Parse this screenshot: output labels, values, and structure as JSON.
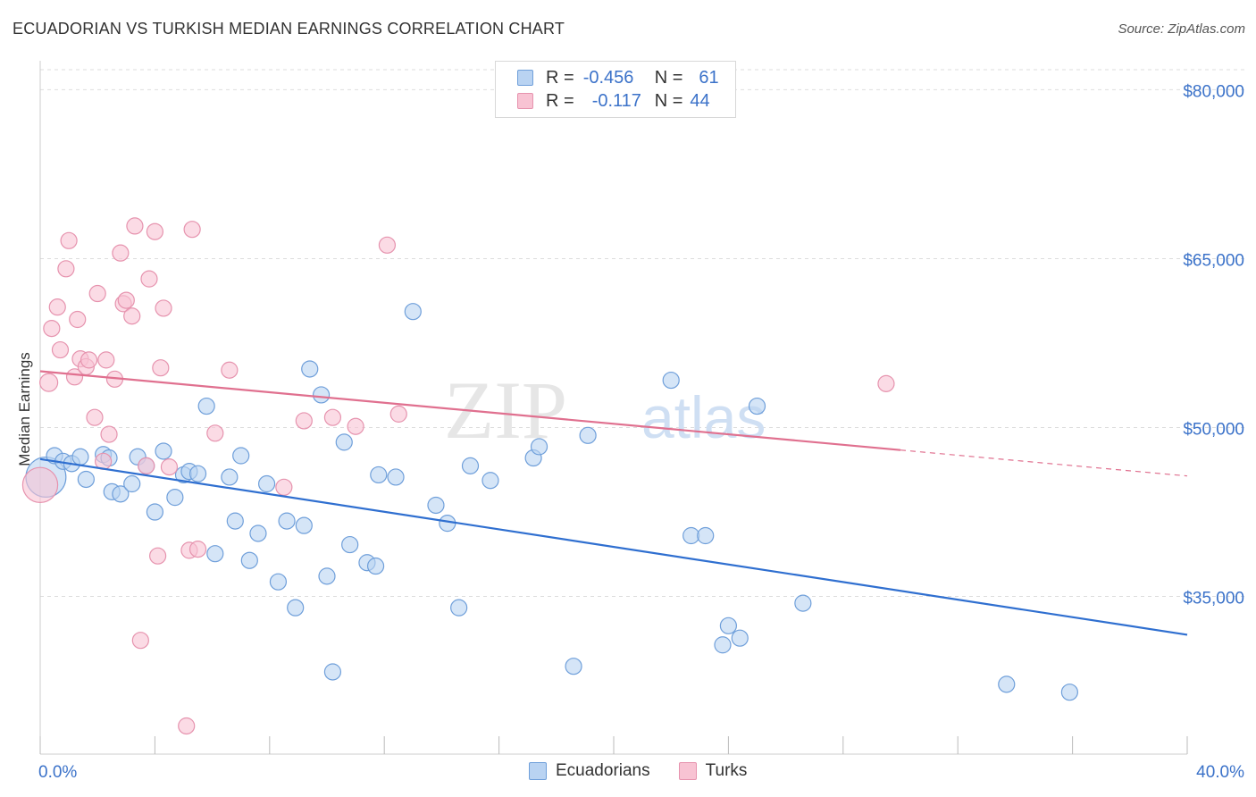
{
  "title": "ECUADORIAN VS TURKISH MEDIAN EARNINGS CORRELATION CHART",
  "source": "Source: ZipAtlas.com",
  "watermark": {
    "zip": "ZIP",
    "atlas": "atlas"
  },
  "legend": {
    "rows": [
      {
        "r_label": "R =",
        "r_value": "-0.456",
        "n_label": "N =",
        "n_value": "61"
      },
      {
        "r_label": "R =",
        "r_value": "-0.117",
        "n_label": "N =",
        "n_value": "44"
      }
    ]
  },
  "colors": {
    "ecuadorians_fill": "#b9d3f2",
    "ecuadorians_stroke": "#6f9fda",
    "ecuadorians_line": "#2f6fd0",
    "turks_fill": "#f8c3d3",
    "turks_stroke": "#e693ae",
    "turks_line": "#e0708f",
    "axis_label": "#3b72c9",
    "grid": "#dddddd"
  },
  "chart_data": {
    "type": "scatter",
    "title": "ECUADORIAN VS TURKISH MEDIAN EARNINGS CORRELATION CHART",
    "xlabel": "",
    "ylabel": "Median Earnings",
    "xlim": [
      0,
      40
    ],
    "ylim": [
      21000,
      84000
    ],
    "x_tick_labels": [
      "0.0%",
      "40.0%"
    ],
    "y_ticks": [
      {
        "value": 35000,
        "label": "$35,000"
      },
      {
        "value": 50000,
        "label": "$50,000"
      },
      {
        "value": 65000,
        "label": "$65,000"
      },
      {
        "value": 80000,
        "label": "$80,000"
      }
    ],
    "grid": true,
    "legend_position": "top-center",
    "series": [
      {
        "name": "Ecuadorians",
        "r": -0.456,
        "n": 61,
        "trend": {
          "x": [
            0,
            40
          ],
          "y": [
            47200,
            31600
          ]
        },
        "points": [
          [
            0.2,
            45600,
            32
          ],
          [
            0.5,
            47500,
            12
          ],
          [
            0.8,
            47000,
            12
          ],
          [
            1.1,
            46800,
            12
          ],
          [
            1.4,
            47400,
            12
          ],
          [
            1.6,
            45400,
            12
          ],
          [
            2.2,
            47600,
            12
          ],
          [
            2.4,
            47300,
            12
          ],
          [
            2.5,
            44300,
            12
          ],
          [
            2.8,
            44100,
            12
          ],
          [
            3.2,
            45000,
            12
          ],
          [
            3.4,
            47400,
            12
          ],
          [
            3.7,
            46600,
            12
          ],
          [
            4.0,
            42500,
            12
          ],
          [
            4.3,
            47900,
            12
          ],
          [
            4.7,
            43800,
            12
          ],
          [
            5.0,
            45800,
            12
          ],
          [
            5.2,
            46100,
            12
          ],
          [
            5.5,
            45900,
            12
          ],
          [
            5.8,
            51900,
            12
          ],
          [
            6.1,
            38800,
            12
          ],
          [
            6.6,
            45600,
            12
          ],
          [
            6.8,
            41700,
            12
          ],
          [
            7.0,
            47500,
            12
          ],
          [
            7.3,
            38200,
            12
          ],
          [
            7.6,
            40600,
            12
          ],
          [
            7.9,
            45000,
            12
          ],
          [
            8.3,
            36300,
            12
          ],
          [
            8.6,
            41700,
            12
          ],
          [
            8.9,
            34000,
            12
          ],
          [
            9.2,
            41300,
            12
          ],
          [
            9.4,
            55200,
            12
          ],
          [
            9.8,
            52900,
            12
          ],
          [
            10.0,
            36800,
            12
          ],
          [
            10.2,
            28300,
            12
          ],
          [
            10.6,
            48700,
            12
          ],
          [
            10.8,
            39600,
            12
          ],
          [
            11.4,
            38000,
            12
          ],
          [
            11.7,
            37700,
            12
          ],
          [
            11.8,
            45800,
            12
          ],
          [
            12.4,
            45600,
            12
          ],
          [
            13.0,
            60300,
            12
          ],
          [
            13.8,
            43100,
            12
          ],
          [
            14.2,
            41500,
            12
          ],
          [
            14.6,
            34000,
            12
          ],
          [
            15.0,
            46600,
            12
          ],
          [
            15.7,
            45300,
            12
          ],
          [
            17.2,
            47300,
            12
          ],
          [
            17.4,
            48300,
            12
          ],
          [
            18.6,
            28800,
            12
          ],
          [
            19.1,
            49300,
            12
          ],
          [
            22.0,
            54200,
            12
          ],
          [
            22.7,
            40400,
            12
          ],
          [
            23.2,
            40400,
            12
          ],
          [
            23.8,
            30700,
            12
          ],
          [
            24.0,
            32400,
            12
          ],
          [
            24.4,
            31300,
            12
          ],
          [
            25.0,
            51900,
            12
          ],
          [
            26.6,
            34400,
            12
          ],
          [
            33.7,
            27200,
            12
          ],
          [
            35.9,
            26500,
            12
          ]
        ]
      },
      {
        "name": "Turks",
        "r": -0.117,
        "n": 44,
        "trend": {
          "x": [
            0,
            30
          ],
          "y": [
            55000,
            48000
          ]
        },
        "trend_dashed": {
          "x": [
            30,
            40
          ],
          "y": [
            48000,
            45700
          ]
        },
        "points": [
          [
            0.0,
            44900,
            28
          ],
          [
            0.3,
            54000,
            14
          ],
          [
            0.4,
            58800,
            12
          ],
          [
            0.6,
            60700,
            12
          ],
          [
            0.7,
            56900,
            12
          ],
          [
            0.9,
            64100,
            12
          ],
          [
            1.0,
            66600,
            12
          ],
          [
            1.2,
            54500,
            12
          ],
          [
            1.3,
            59600,
            12
          ],
          [
            1.4,
            56100,
            12
          ],
          [
            1.6,
            55400,
            12
          ],
          [
            1.7,
            56000,
            12
          ],
          [
            1.9,
            50900,
            12
          ],
          [
            2.0,
            61900,
            12
          ],
          [
            2.2,
            47000,
            12
          ],
          [
            2.3,
            56000,
            12
          ],
          [
            2.4,
            49400,
            12
          ],
          [
            2.6,
            54300,
            12
          ],
          [
            2.8,
            65500,
            12
          ],
          [
            2.9,
            61000,
            12
          ],
          [
            3.0,
            61300,
            12
          ],
          [
            3.2,
            59900,
            12
          ],
          [
            3.3,
            67900,
            12
          ],
          [
            3.5,
            31100,
            12
          ],
          [
            3.7,
            46600,
            12
          ],
          [
            3.8,
            63200,
            12
          ],
          [
            4.0,
            67400,
            12
          ],
          [
            4.1,
            38600,
            12
          ],
          [
            4.2,
            55300,
            12
          ],
          [
            4.3,
            60600,
            12
          ],
          [
            4.5,
            46500,
            12
          ],
          [
            5.1,
            23500,
            12
          ],
          [
            5.2,
            39100,
            12
          ],
          [
            5.3,
            67600,
            12
          ],
          [
            5.5,
            39200,
            12
          ],
          [
            6.1,
            49500,
            12
          ],
          [
            6.6,
            55100,
            12
          ],
          [
            8.5,
            44700,
            12
          ],
          [
            9.2,
            50600,
            12
          ],
          [
            10.2,
            50900,
            12
          ],
          [
            11.0,
            50100,
            12
          ],
          [
            12.1,
            66200,
            12
          ],
          [
            12.5,
            51200,
            12
          ],
          [
            29.5,
            53900,
            12
          ]
        ]
      }
    ]
  }
}
